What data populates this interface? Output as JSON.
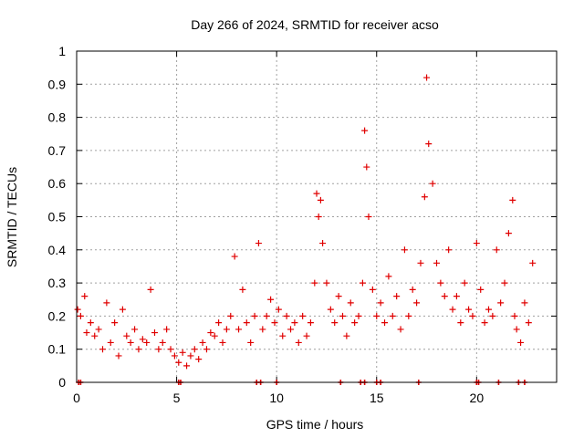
{
  "chart_data": {
    "type": "scatter",
    "title": "Day 266 of 2024, SRMTID for receiver acso",
    "xlabel": "GPS time / hours",
    "ylabel": "SRMTID / TECUs",
    "xlim": [
      0,
      24
    ],
    "ylim": [
      0,
      1
    ],
    "xticks": [
      0,
      5,
      10,
      15,
      20
    ],
    "yticks": [
      0,
      0.1,
      0.2,
      0.3,
      0.4,
      0.5,
      0.6,
      0.7,
      0.8,
      0.9,
      1
    ],
    "grid": true,
    "marker": "plus",
    "series": [
      {
        "name": "SRMTID",
        "color": "#e00000",
        "x": [
          0.05,
          0.2,
          0.4,
          0.5,
          0.7,
          0.9,
          1.1,
          1.3,
          1.5,
          1.7,
          1.9,
          2.1,
          2.3,
          2.5,
          2.7,
          2.9,
          3.1,
          3.3,
          3.5,
          3.7,
          3.9,
          4.1,
          4.3,
          4.5,
          4.7,
          4.9,
          5.1,
          5.3,
          5.5,
          5.7,
          5.9,
          6.1,
          6.3,
          6.5,
          6.7,
          6.9,
          7.1,
          7.3,
          7.5,
          7.7,
          7.9,
          8.1,
          8.3,
          8.5,
          8.7,
          8.9,
          9.1,
          9.3,
          9.5,
          9.7,
          9.9,
          10.1,
          10.3,
          10.5,
          10.7,
          10.9,
          11.1,
          11.3,
          11.5,
          11.7,
          11.9,
          12.0,
          12.1,
          12.2,
          12.3,
          12.5,
          12.7,
          12.9,
          13.1,
          13.3,
          13.5,
          13.7,
          13.9,
          14.1,
          14.3,
          14.4,
          14.5,
          14.6,
          14.8,
          15.0,
          15.2,
          15.4,
          15.6,
          15.8,
          16.0,
          16.2,
          16.4,
          16.6,
          16.8,
          17.0,
          17.2,
          17.4,
          17.5,
          17.6,
          17.8,
          18.0,
          18.2,
          18.4,
          18.6,
          18.8,
          19.0,
          19.2,
          19.4,
          19.6,
          19.8,
          20.0,
          20.2,
          20.4,
          20.6,
          20.8,
          21.0,
          21.2,
          21.4,
          21.6,
          21.8,
          21.9,
          22.0,
          22.2,
          22.4,
          22.6,
          22.8
        ],
        "y": [
          0.22,
          0.2,
          0.26,
          0.15,
          0.18,
          0.14,
          0.16,
          0.1,
          0.24,
          0.12,
          0.18,
          0.08,
          0.22,
          0.14,
          0.12,
          0.16,
          0.1,
          0.13,
          0.12,
          0.28,
          0.15,
          0.1,
          0.12,
          0.16,
          0.1,
          0.08,
          0.06,
          0.09,
          0.05,
          0.08,
          0.1,
          0.07,
          0.12,
          0.1,
          0.15,
          0.14,
          0.18,
          0.12,
          0.16,
          0.2,
          0.38,
          0.16,
          0.28,
          0.18,
          0.12,
          0.2,
          0.42,
          0.16,
          0.2,
          0.25,
          0.18,
          0.22,
          0.14,
          0.2,
          0.16,
          0.18,
          0.12,
          0.2,
          0.14,
          0.18,
          0.3,
          0.57,
          0.5,
          0.55,
          0.42,
          0.3,
          0.22,
          0.18,
          0.26,
          0.2,
          0.14,
          0.24,
          0.18,
          0.2,
          0.3,
          0.76,
          0.65,
          0.5,
          0.28,
          0.2,
          0.24,
          0.18,
          0.32,
          0.2,
          0.26,
          0.16,
          0.4,
          0.2,
          0.28,
          0.24,
          0.36,
          0.56,
          0.92,
          0.72,
          0.6,
          0.36,
          0.3,
          0.26,
          0.4,
          0.22,
          0.26,
          0.18,
          0.3,
          0.22,
          0.2,
          0.42,
          0.28,
          0.18,
          0.22,
          0.2,
          0.4,
          0.24,
          0.3,
          0.45,
          0.55,
          0.2,
          0.16,
          0.12,
          0.24,
          0.18,
          0.36
        ]
      }
    ],
    "bottom_markers_x": [
      0.1,
      0.2,
      5.1,
      5.2,
      9.0,
      9.2,
      10.0,
      13.2,
      14.2,
      14.4,
      15.0,
      15.2,
      17.1,
      20.0,
      20.1,
      21.1,
      22.1,
      22.4
    ]
  }
}
